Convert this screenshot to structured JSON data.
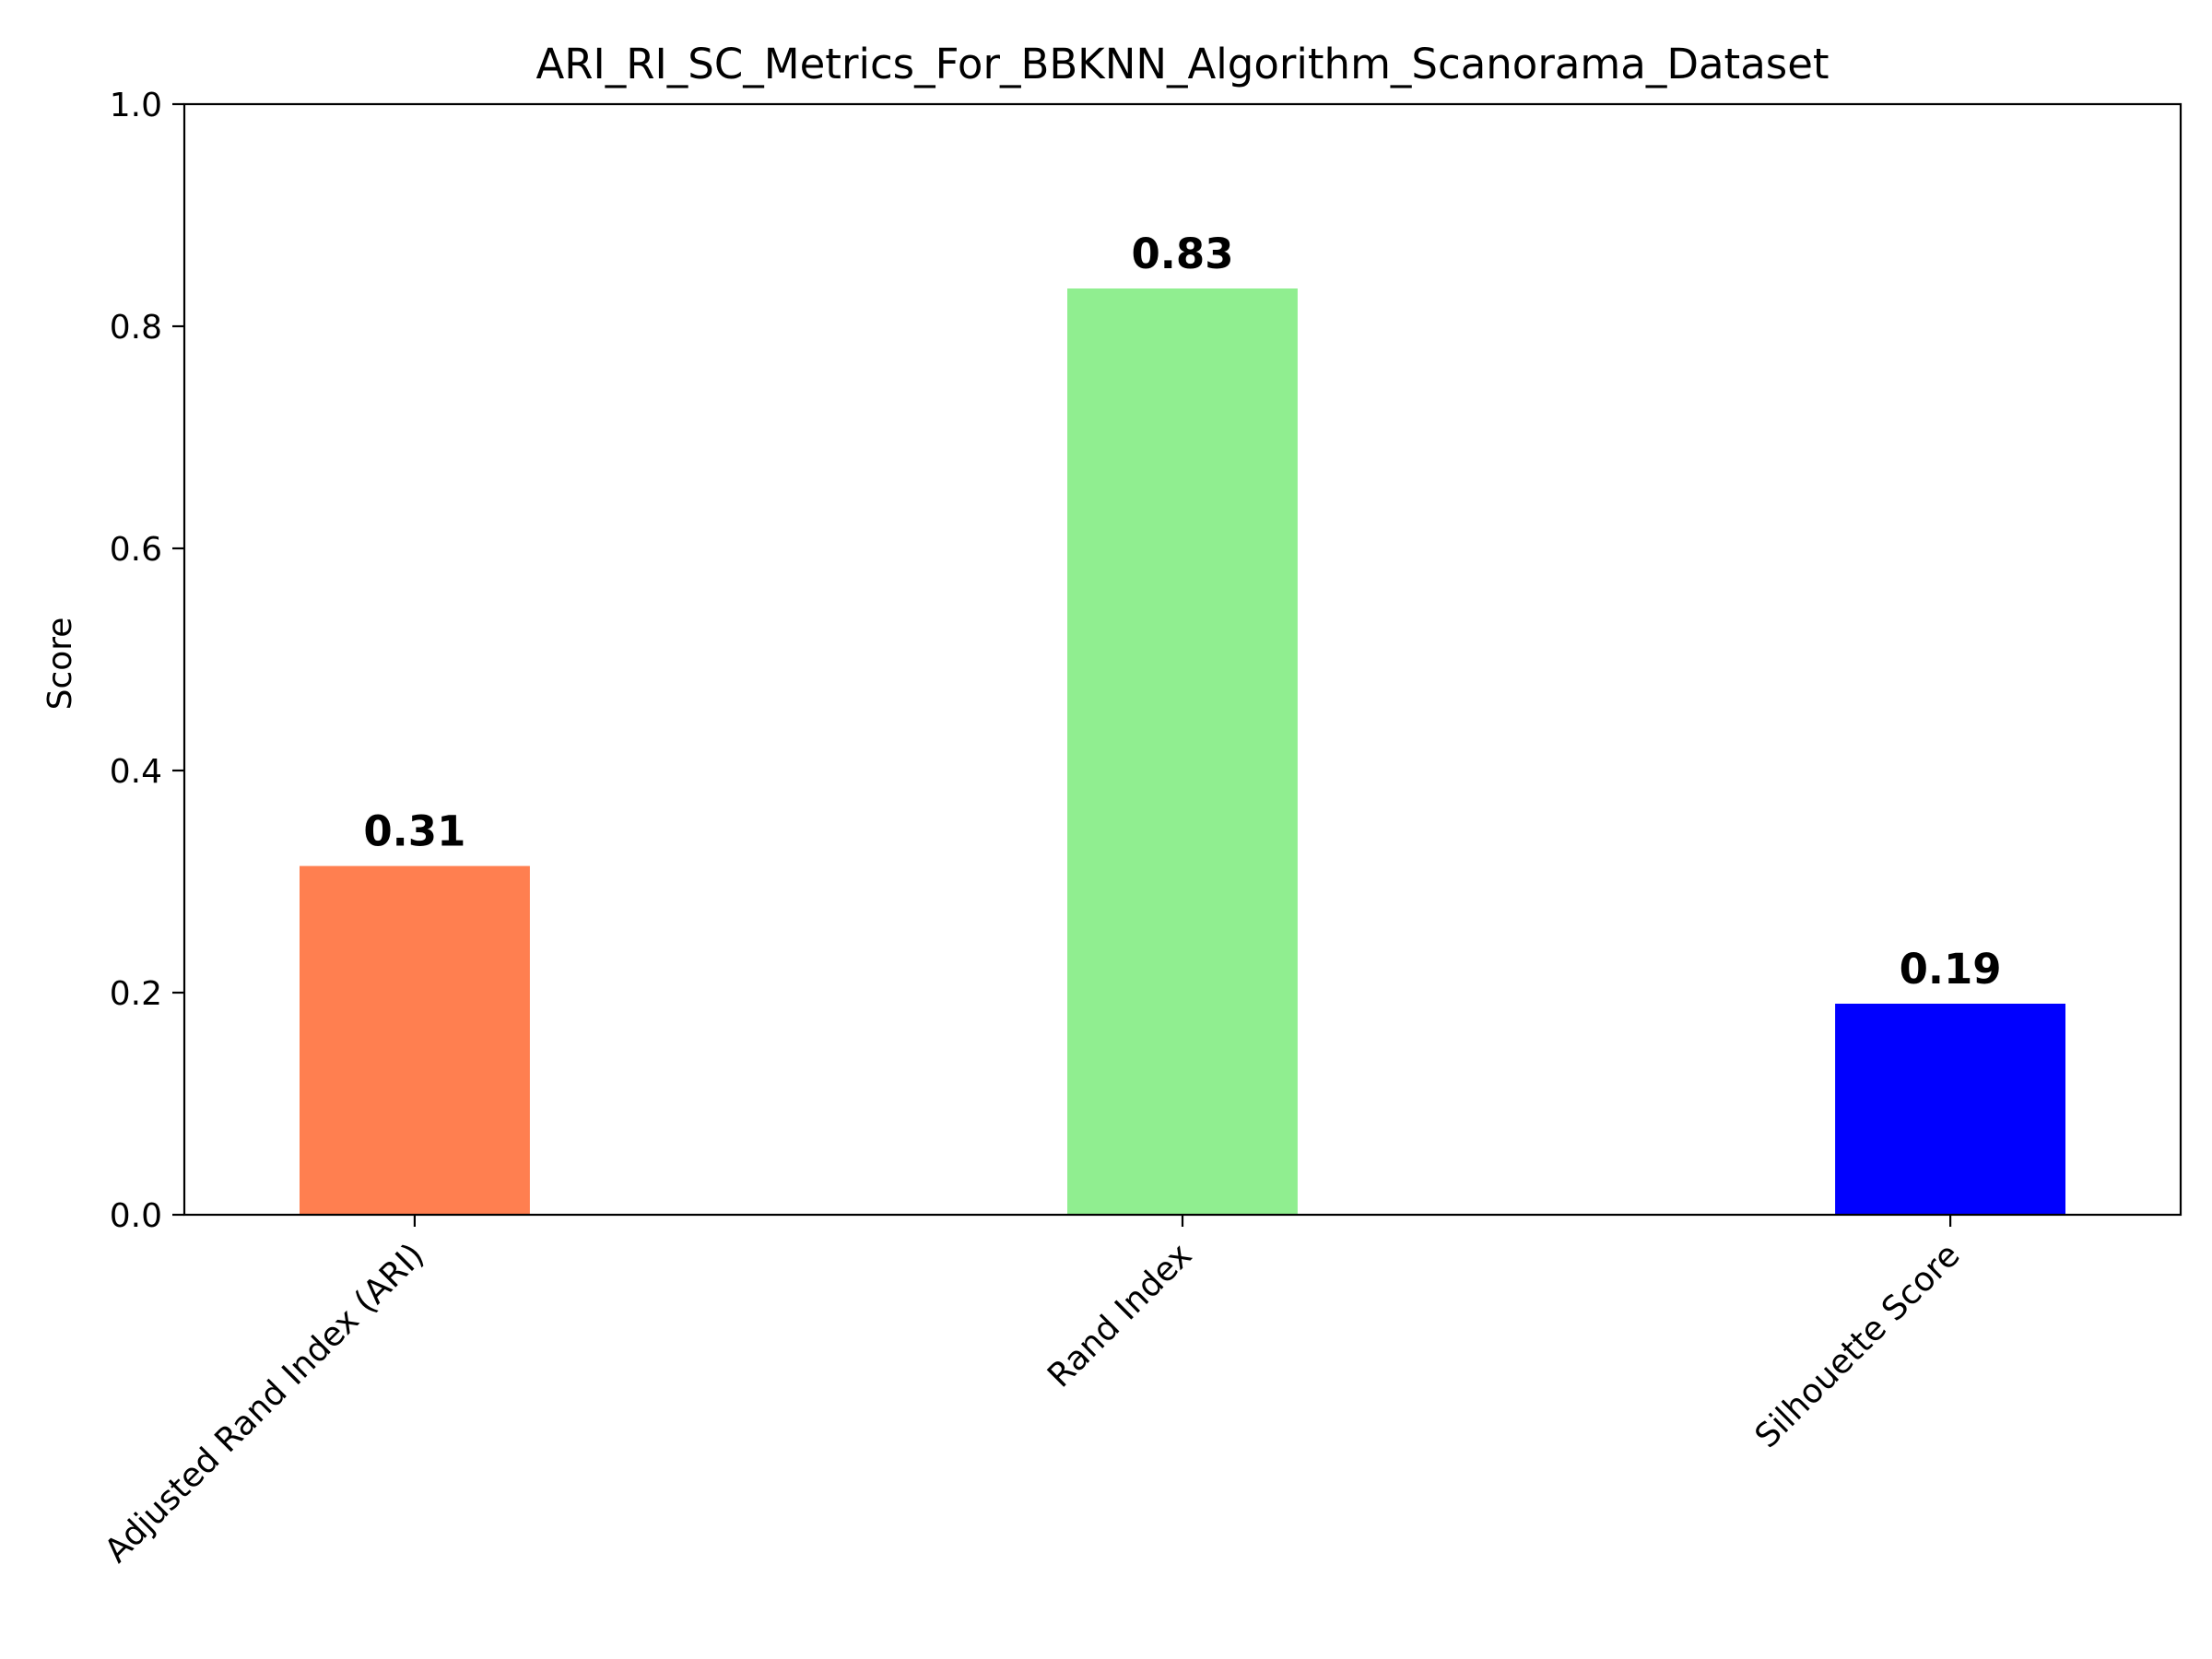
{
  "chart_data": {
    "type": "bar",
    "title": "ARI_RI_SC_Metrics_For_BBKNN_Algorithm_Scanorama_Dataset",
    "xlabel": "",
    "ylabel": "Score",
    "categories": [
      "Adjusted Rand Index (ARI)",
      "Rand Index",
      "Silhouette Score"
    ],
    "values": [
      0.314,
      0.834,
      0.19
    ],
    "value_labels": [
      "0.31",
      "0.83",
      "0.19"
    ],
    "colors": [
      "#ff7f50",
      "#90ee90",
      "#0000ff"
    ],
    "ylim": [
      0,
      1.0
    ],
    "yticks": [
      0.0,
      0.2,
      0.4,
      0.6,
      0.8,
      1.0
    ],
    "ytick_labels": [
      "0.0",
      "0.2",
      "0.4",
      "0.6",
      "0.8",
      "1.0"
    ],
    "grid": false,
    "legend": "none"
  }
}
